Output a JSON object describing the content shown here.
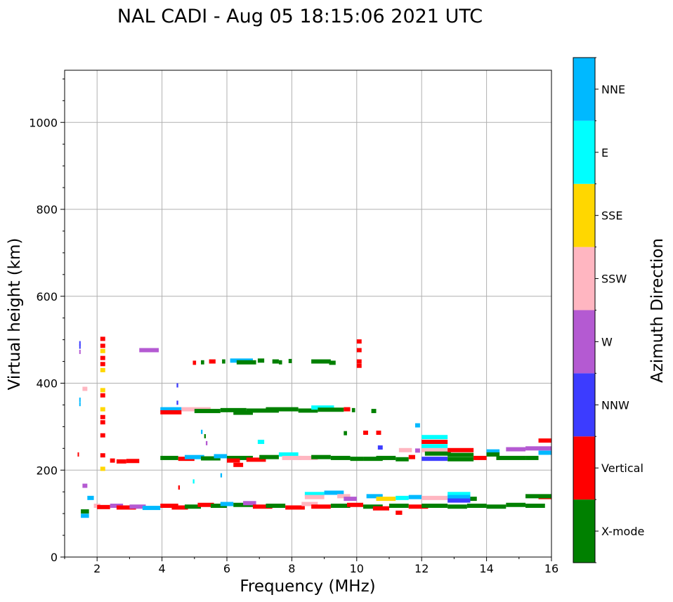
{
  "chart_data": {
    "type": "scatter",
    "title": "NAL CADI - Aug 05 18:15:06 2021 UTC",
    "xlabel": "Frequency (MHz)",
    "ylabel": "Virtual height (km)",
    "xlim": [
      1,
      16
    ],
    "ylim": [
      0,
      1120
    ],
    "xticks": [
      2,
      4,
      6,
      8,
      10,
      12,
      14,
      16
    ],
    "yticks": [
      0,
      200,
      400,
      600,
      800,
      1000
    ],
    "grid": true,
    "colorbar": {
      "label": "Azimuth Direction",
      "categories": [
        {
          "name": "X-mode",
          "color": "#008000"
        },
        {
          "name": "Vertical",
          "color": "#ff0000"
        },
        {
          "name": "NNW",
          "color": "#3c3cff"
        },
        {
          "name": "W",
          "color": "#b45ad2"
        },
        {
          "name": "SSW",
          "color": "#ffb6c1"
        },
        {
          "name": "SSE",
          "color": "#ffd700"
        },
        {
          "name": "E",
          "color": "#00ffff"
        },
        {
          "name": "NNE",
          "color": "#00b9ff"
        }
      ]
    },
    "segments": [
      {
        "x0": 1.4,
        "x1": 1.44,
        "y": 236,
        "c": "Vertical"
      },
      {
        "x0": 1.45,
        "x1": 1.49,
        "y": 492,
        "c": "NNW"
      },
      {
        "x0": 1.45,
        "x1": 1.49,
        "y": 484,
        "c": "NNW"
      },
      {
        "x0": 1.45,
        "x1": 1.49,
        "y": 472,
        "c": "W"
      },
      {
        "x0": 1.45,
        "x1": 1.49,
        "y": 362,
        "c": "NNE"
      },
      {
        "x0": 1.45,
        "x1": 1.49,
        "y": 352,
        "c": "NNE"
      },
      {
        "x0": 1.55,
        "x1": 1.7,
        "y": 387,
        "c": "SSW"
      },
      {
        "x0": 1.55,
        "x1": 1.7,
        "y": 164,
        "c": "W"
      },
      {
        "x0": 2.1,
        "x1": 2.25,
        "y": 502,
        "c": "Vertical"
      },
      {
        "x0": 2.1,
        "x1": 2.25,
        "y": 486,
        "c": "Vertical"
      },
      {
        "x0": 2.1,
        "x1": 2.25,
        "y": 474,
        "c": "SSE"
      },
      {
        "x0": 2.1,
        "x1": 2.25,
        "y": 458,
        "c": "Vertical"
      },
      {
        "x0": 2.1,
        "x1": 2.25,
        "y": 444,
        "c": "Vertical"
      },
      {
        "x0": 2.1,
        "x1": 2.25,
        "y": 430,
        "c": "SSE"
      },
      {
        "x0": 2.1,
        "x1": 2.25,
        "y": 384,
        "c": "SSE"
      },
      {
        "x0": 2.1,
        "x1": 2.25,
        "y": 372,
        "c": "Vertical"
      },
      {
        "x0": 2.1,
        "x1": 2.25,
        "y": 340,
        "c": "SSE"
      },
      {
        "x0": 2.1,
        "x1": 2.25,
        "y": 322,
        "c": "Vertical"
      },
      {
        "x0": 2.1,
        "x1": 2.25,
        "y": 310,
        "c": "Vertical"
      },
      {
        "x0": 2.1,
        "x1": 2.25,
        "y": 280,
        "c": "Vertical"
      },
      {
        "x0": 2.1,
        "x1": 2.25,
        "y": 234,
        "c": "Vertical"
      },
      {
        "x0": 2.1,
        "x1": 2.25,
        "y": 203,
        "c": "SSE"
      },
      {
        "x0": 3.3,
        "x1": 3.9,
        "y": 476,
        "c": "W"
      },
      {
        "x0": 2.4,
        "x1": 2.55,
        "y": 222,
        "c": "Vertical"
      },
      {
        "x0": 2.6,
        "x1": 2.9,
        "y": 220,
        "c": "Vertical"
      },
      {
        "x0": 2.9,
        "x1": 3.3,
        "y": 221,
        "c": "Vertical"
      },
      {
        "x0": 3.95,
        "x1": 4.6,
        "y": 340,
        "c": "NNE"
      },
      {
        "x0": 3.95,
        "x1": 4.6,
        "y": 333,
        "c": "Vertical"
      },
      {
        "x0": 4.6,
        "x1": 5.5,
        "y": 340,
        "c": "SSW"
      },
      {
        "x0": 5.0,
        "x1": 5.8,
        "y": 336,
        "c": "X-mode"
      },
      {
        "x0": 5.8,
        "x1": 6.6,
        "y": 338,
        "c": "X-mode"
      },
      {
        "x0": 6.2,
        "x1": 6.8,
        "y": 332,
        "c": "X-mode"
      },
      {
        "x0": 6.6,
        "x1": 7.6,
        "y": 337,
        "c": "X-mode"
      },
      {
        "x0": 7.2,
        "x1": 8.2,
        "y": 340,
        "c": "X-mode"
      },
      {
        "x0": 8.2,
        "x1": 8.8,
        "y": 337,
        "c": "X-mode"
      },
      {
        "x0": 8.6,
        "x1": 9.3,
        "y": 344,
        "c": "E"
      },
      {
        "x0": 8.8,
        "x1": 9.6,
        "y": 339,
        "c": "X-mode"
      },
      {
        "x0": 9.6,
        "x1": 9.8,
        "y": 340,
        "c": "Vertical"
      },
      {
        "x0": 9.85,
        "x1": 9.95,
        "y": 338,
        "c": "X-mode"
      },
      {
        "x0": 10.45,
        "x1": 10.6,
        "y": 336,
        "c": "X-mode"
      },
      {
        "x0": 4.95,
        "x1": 5.05,
        "y": 447,
        "c": "Vertical"
      },
      {
        "x0": 5.2,
        "x1": 5.3,
        "y": 448,
        "c": "X-mode"
      },
      {
        "x0": 5.45,
        "x1": 5.65,
        "y": 450,
        "c": "Vertical"
      },
      {
        "x0": 5.85,
        "x1": 5.95,
        "y": 450,
        "c": "X-mode"
      },
      {
        "x0": 6.1,
        "x1": 6.8,
        "y": 452,
        "c": "NNE"
      },
      {
        "x0": 6.3,
        "x1": 6.9,
        "y": 448,
        "c": "X-mode"
      },
      {
        "x0": 6.95,
        "x1": 7.15,
        "y": 452,
        "c": "X-mode"
      },
      {
        "x0": 7.4,
        "x1": 7.6,
        "y": 450,
        "c": "X-mode"
      },
      {
        "x0": 7.6,
        "x1": 7.7,
        "y": 448,
        "c": "X-mode"
      },
      {
        "x0": 7.9,
        "x1": 8.0,
        "y": 451,
        "c": "X-mode"
      },
      {
        "x0": 8.6,
        "x1": 9.2,
        "y": 450,
        "c": "X-mode"
      },
      {
        "x0": 9.15,
        "x1": 9.35,
        "y": 447,
        "c": "X-mode"
      },
      {
        "x0": 10.0,
        "x1": 10.15,
        "y": 496,
        "c": "Vertical"
      },
      {
        "x0": 10.0,
        "x1": 10.15,
        "y": 476,
        "c": "Vertical"
      },
      {
        "x0": 10.0,
        "x1": 10.15,
        "y": 450,
        "c": "Vertical"
      },
      {
        "x0": 10.0,
        "x1": 10.15,
        "y": 440,
        "c": "Vertical"
      },
      {
        "x0": 3.95,
        "x1": 4.5,
        "y": 228,
        "c": "X-mode"
      },
      {
        "x0": 4.5,
        "x1": 5.0,
        "y": 226,
        "c": "Vertical"
      },
      {
        "x0": 4.7,
        "x1": 5.3,
        "y": 230,
        "c": "NNE"
      },
      {
        "x0": 5.2,
        "x1": 5.8,
        "y": 227,
        "c": "X-mode"
      },
      {
        "x0": 5.6,
        "x1": 6.0,
        "y": 232,
        "c": "NNE"
      },
      {
        "x0": 6.0,
        "x1": 6.8,
        "y": 228,
        "c": "X-mode"
      },
      {
        "x0": 6.0,
        "x1": 6.4,
        "y": 222,
        "c": "Vertical"
      },
      {
        "x0": 6.2,
        "x1": 6.5,
        "y": 212,
        "c": "Vertical"
      },
      {
        "x0": 6.6,
        "x1": 7.2,
        "y": 224,
        "c": "Vertical"
      },
      {
        "x0": 7.0,
        "x1": 7.6,
        "y": 230,
        "c": "X-mode"
      },
      {
        "x0": 7.6,
        "x1": 8.2,
        "y": 236,
        "c": "E"
      },
      {
        "x0": 7.7,
        "x1": 8.3,
        "y": 228,
        "c": "SSW"
      },
      {
        "x0": 8.2,
        "x1": 8.8,
        "y": 228,
        "c": "SSW"
      },
      {
        "x0": 8.6,
        "x1": 9.2,
        "y": 230,
        "c": "X-mode"
      },
      {
        "x0": 9.2,
        "x1": 9.8,
        "y": 228,
        "c": "X-mode"
      },
      {
        "x0": 9.8,
        "x1": 10.2,
        "y": 226,
        "c": "X-mode"
      },
      {
        "x0": 10.2,
        "x1": 10.8,
        "y": 226,
        "c": "X-mode"
      },
      {
        "x0": 10.6,
        "x1": 11.2,
        "y": 228,
        "c": "X-mode"
      },
      {
        "x0": 11.2,
        "x1": 11.6,
        "y": 225,
        "c": "X-mode"
      },
      {
        "x0": 11.3,
        "x1": 11.7,
        "y": 246,
        "c": "SSW"
      },
      {
        "x0": 11.6,
        "x1": 11.8,
        "y": 230,
        "c": "Vertical"
      },
      {
        "x0": 11.8,
        "x1": 11.95,
        "y": 245,
        "c": "W"
      },
      {
        "x0": 12.0,
        "x1": 12.8,
        "y": 276,
        "c": "E"
      },
      {
        "x0": 12.0,
        "x1": 12.8,
        "y": 265,
        "c": "Vertical"
      },
      {
        "x0": 12.0,
        "x1": 12.8,
        "y": 255,
        "c": "E"
      },
      {
        "x0": 12.0,
        "x1": 12.8,
        "y": 246,
        "c": "SSW"
      },
      {
        "x0": 12.1,
        "x1": 12.9,
        "y": 238,
        "c": "X-mode"
      },
      {
        "x0": 12.0,
        "x1": 12.8,
        "y": 226,
        "c": "NNW"
      },
      {
        "x0": 12.8,
        "x1": 13.6,
        "y": 246,
        "c": "Vertical"
      },
      {
        "x0": 12.8,
        "x1": 13.6,
        "y": 235,
        "c": "X-mode"
      },
      {
        "x0": 12.8,
        "x1": 13.6,
        "y": 225,
        "c": "X-mode"
      },
      {
        "x0": 13.6,
        "x1": 14.0,
        "y": 228,
        "c": "Vertical"
      },
      {
        "x0": 14.0,
        "x1": 14.4,
        "y": 243,
        "c": "NNE"
      },
      {
        "x0": 14.0,
        "x1": 14.4,
        "y": 236,
        "c": "X-mode"
      },
      {
        "x0": 14.3,
        "x1": 15.2,
        "y": 228,
        "c": "X-mode"
      },
      {
        "x0": 14.6,
        "x1": 15.2,
        "y": 248,
        "c": "W"
      },
      {
        "x0": 15.2,
        "x1": 15.6,
        "y": 250,
        "c": "W"
      },
      {
        "x0": 15.2,
        "x1": 15.6,
        "y": 228,
        "c": "X-mode"
      },
      {
        "x0": 15.6,
        "x1": 16.0,
        "y": 268,
        "c": "Vertical"
      },
      {
        "x0": 15.6,
        "x1": 16.0,
        "y": 250,
        "c": "W"
      },
      {
        "x0": 15.6,
        "x1": 16.0,
        "y": 240,
        "c": "NNE"
      },
      {
        "x0": 10.2,
        "x1": 10.35,
        "y": 286,
        "c": "Vertical"
      },
      {
        "x0": 10.6,
        "x1": 10.75,
        "y": 286,
        "c": "Vertical"
      },
      {
        "x0": 11.8,
        "x1": 11.95,
        "y": 303,
        "c": "NNE"
      },
      {
        "x0": 1.5,
        "x1": 1.75,
        "y": 95,
        "c": "NNE"
      },
      {
        "x0": 1.5,
        "x1": 1.75,
        "y": 105,
        "c": "X-mode"
      },
      {
        "x0": 1.7,
        "x1": 1.9,
        "y": 136,
        "c": "NNE"
      },
      {
        "x0": 1.9,
        "x1": 2.1,
        "y": 118,
        "c": "SSW"
      },
      {
        "x0": 2.0,
        "x1": 2.4,
        "y": 115,
        "c": "Vertical"
      },
      {
        "x0": 2.4,
        "x1": 2.8,
        "y": 118,
        "c": "W"
      },
      {
        "x0": 2.6,
        "x1": 3.2,
        "y": 114,
        "c": "Vertical"
      },
      {
        "x0": 3.0,
        "x1": 3.5,
        "y": 116,
        "c": "W"
      },
      {
        "x0": 3.4,
        "x1": 3.95,
        "y": 113,
        "c": "NNE"
      },
      {
        "x0": 3.95,
        "x1": 4.5,
        "y": 118,
        "c": "Vertical"
      },
      {
        "x0": 4.3,
        "x1": 4.8,
        "y": 114,
        "c": "Vertical"
      },
      {
        "x0": 4.7,
        "x1": 5.2,
        "y": 116,
        "c": "X-mode"
      },
      {
        "x0": 5.1,
        "x1": 5.6,
        "y": 120,
        "c": "Vertical"
      },
      {
        "x0": 5.5,
        "x1": 6.0,
        "y": 118,
        "c": "X-mode"
      },
      {
        "x0": 5.8,
        "x1": 6.2,
        "y": 122,
        "c": "NNE"
      },
      {
        "x0": 6.2,
        "x1": 6.8,
        "y": 120,
        "c": "X-mode"
      },
      {
        "x0": 6.5,
        "x1": 6.9,
        "y": 124,
        "c": "W"
      },
      {
        "x0": 6.8,
        "x1": 7.4,
        "y": 116,
        "c": "Vertical"
      },
      {
        "x0": 7.2,
        "x1": 7.8,
        "y": 118,
        "c": "X-mode"
      },
      {
        "x0": 7.8,
        "x1": 8.4,
        "y": 114,
        "c": "Vertical"
      },
      {
        "x0": 8.3,
        "x1": 8.8,
        "y": 122,
        "c": "SSW"
      },
      {
        "x0": 8.6,
        "x1": 9.2,
        "y": 116,
        "c": "Vertical"
      },
      {
        "x0": 9.2,
        "x1": 9.8,
        "y": 118,
        "c": "X-mode"
      },
      {
        "x0": 9.7,
        "x1": 10.2,
        "y": 120,
        "c": "Vertical"
      },
      {
        "x0": 10.2,
        "x1": 10.8,
        "y": 116,
        "c": "X-mode"
      },
      {
        "x0": 10.5,
        "x1": 11.0,
        "y": 112,
        "c": "Vertical"
      },
      {
        "x0": 11.0,
        "x1": 11.6,
        "y": 118,
        "c": "X-mode"
      },
      {
        "x0": 11.2,
        "x1": 11.4,
        "y": 102,
        "c": "Vertical"
      },
      {
        "x0": 11.6,
        "x1": 12.2,
        "y": 116,
        "c": "Vertical"
      },
      {
        "x0": 12.0,
        "x1": 12.8,
        "y": 118,
        "c": "X-mode"
      },
      {
        "x0": 12.8,
        "x1": 13.4,
        "y": 116,
        "c": "X-mode"
      },
      {
        "x0": 13.4,
        "x1": 14.0,
        "y": 118,
        "c": "X-mode"
      },
      {
        "x0": 14.0,
        "x1": 14.6,
        "y": 116,
        "c": "X-mode"
      },
      {
        "x0": 14.6,
        "x1": 15.2,
        "y": 120,
        "c": "X-mode"
      },
      {
        "x0": 15.2,
        "x1": 15.8,
        "y": 118,
        "c": "X-mode"
      },
      {
        "x0": 15.6,
        "x1": 16.0,
        "y": 138,
        "c": "Vertical"
      },
      {
        "x0": 8.4,
        "x1": 9.0,
        "y": 145,
        "c": "E"
      },
      {
        "x0": 8.4,
        "x1": 9.0,
        "y": 138,
        "c": "SSW"
      },
      {
        "x0": 9.0,
        "x1": 9.6,
        "y": 148,
        "c": "NNE"
      },
      {
        "x0": 9.4,
        "x1": 9.8,
        "y": 140,
        "c": "SSW"
      },
      {
        "x0": 9.6,
        "x1": 10.0,
        "y": 134,
        "c": "W"
      },
      {
        "x0": 10.3,
        "x1": 10.8,
        "y": 140,
        "c": "NNE"
      },
      {
        "x0": 10.6,
        "x1": 11.2,
        "y": 134,
        "c": "SSE"
      },
      {
        "x0": 11.2,
        "x1": 11.6,
        "y": 136,
        "c": "E"
      },
      {
        "x0": 11.6,
        "x1": 12.0,
        "y": 138,
        "c": "NNE"
      },
      {
        "x0": 12.0,
        "x1": 12.8,
        "y": 136,
        "c": "SSW"
      },
      {
        "x0": 12.8,
        "x1": 13.5,
        "y": 145,
        "c": "E"
      },
      {
        "x0": 12.8,
        "x1": 13.5,
        "y": 138,
        "c": "NNE"
      },
      {
        "x0": 12.8,
        "x1": 13.5,
        "y": 130,
        "c": "NNW"
      },
      {
        "x0": 13.5,
        "x1": 13.7,
        "y": 134,
        "c": "X-mode"
      },
      {
        "x0": 15.2,
        "x1": 16.0,
        "y": 140,
        "c": "X-mode"
      },
      {
        "x0": 4.45,
        "x1": 4.5,
        "y": 395,
        "c": "NNW"
      },
      {
        "x0": 4.45,
        "x1": 4.5,
        "y": 355,
        "c": "NNW"
      },
      {
        "x0": 4.5,
        "x1": 4.55,
        "y": 160,
        "c": "Vertical"
      },
      {
        "x0": 4.95,
        "x1": 5.0,
        "y": 174,
        "c": "E"
      },
      {
        "x0": 5.3,
        "x1": 5.35,
        "y": 278,
        "c": "X-mode"
      },
      {
        "x0": 5.2,
        "x1": 5.25,
        "y": 288,
        "c": "NNE"
      },
      {
        "x0": 5.35,
        "x1": 5.4,
        "y": 262,
        "c": "W"
      },
      {
        "x0": 5.8,
        "x1": 5.85,
        "y": 188,
        "c": "NNE"
      },
      {
        "x0": 6.95,
        "x1": 7.15,
        "y": 265,
        "c": "E"
      },
      {
        "x0": 9.6,
        "x1": 9.7,
        "y": 285,
        "c": "X-mode"
      },
      {
        "x0": 10.65,
        "x1": 10.8,
        "y": 252,
        "c": "NNW"
      }
    ]
  }
}
